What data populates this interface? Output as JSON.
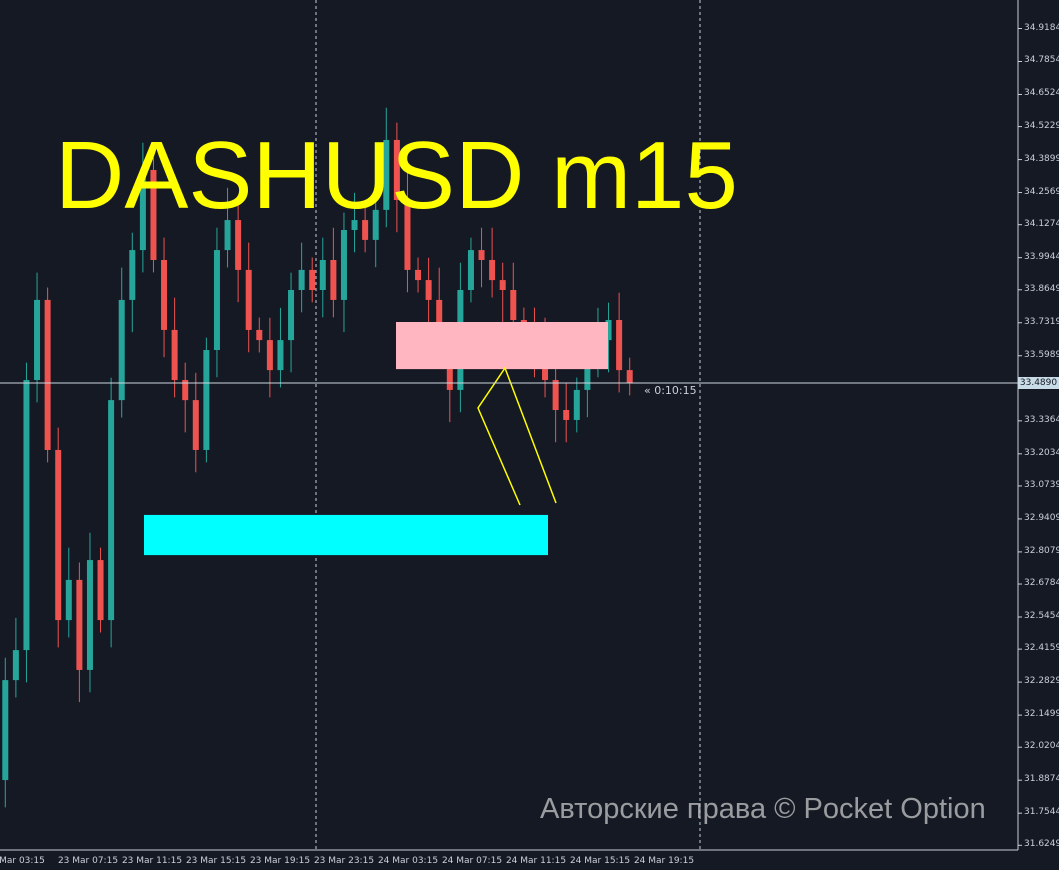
{
  "title": "DASHUSD m15",
  "watermark": "Авторские права © Pocket Option",
  "countdown": "« 0:10:15",
  "current_price": "33.4890",
  "price_axis": [
    "34.9184",
    "34.7854",
    "34.6524",
    "34.5229",
    "34.3899",
    "34.2569",
    "34.1274",
    "33.9944",
    "33.8649",
    "33.7319",
    "33.5989",
    "33.3364",
    "33.2034",
    "33.0739",
    "32.9409",
    "32.8079",
    "32.6784",
    "32.5454",
    "32.4159",
    "32.2829",
    "32.1499",
    "32.0204",
    "31.8874",
    "31.7544",
    "31.6249"
  ],
  "time_axis": [
    "Mar 03:15",
    "23 Mar 07:15",
    "23 Mar 11:15",
    "23 Mar 15:15",
    "23 Mar 19:15",
    "23 Mar 23:15",
    "24 Mar 03:15",
    "24 Mar 07:15",
    "24 Mar 11:15",
    "24 Mar 15:15",
    "24 Mar 19:15"
  ],
  "colors": {
    "background": "#151924",
    "bull": "#26a69a",
    "bear": "#ef5350",
    "title": "#ffff00",
    "supply_zone": "#ffb6c1",
    "demand_zone": "#00ffff",
    "trend_lines": "#ffff00"
  },
  "chart_data": {
    "type": "candlestick",
    "symbol": "DASHUSD",
    "timeframe": "m15",
    "ylim": [
      31.6249,
      34.9184
    ],
    "closes": [
      31.888,
      32.291,
      32.412,
      33.501,
      33.824,
      33.219,
      32.533,
      32.695,
      32.332,
      32.775,
      32.533,
      33.42,
      33.824,
      34.025,
      34.348,
      33.985,
      33.703,
      33.501,
      33.42,
      33.219,
      33.622,
      34.025,
      34.146,
      33.945,
      33.703,
      33.662,
      33.541,
      33.662,
      33.864,
      33.945,
      33.864,
      33.985,
      33.824,
      34.106,
      34.146,
      34.066,
      34.187,
      34.469,
      34.227,
      33.945,
      33.904,
      33.824,
      33.622,
      33.461,
      33.864,
      34.025,
      33.985,
      33.904,
      33.864,
      33.743,
      33.703,
      33.622,
      33.501,
      33.38,
      33.34,
      33.461,
      33.582,
      33.662,
      33.743,
      33.541,
      33.489
    ],
    "zones": [
      {
        "kind": "supply",
        "price_top": 33.735,
        "price_bottom": 33.545
      },
      {
        "kind": "demand",
        "price_top": 32.957,
        "price_bottom": 32.795
      }
    ]
  }
}
